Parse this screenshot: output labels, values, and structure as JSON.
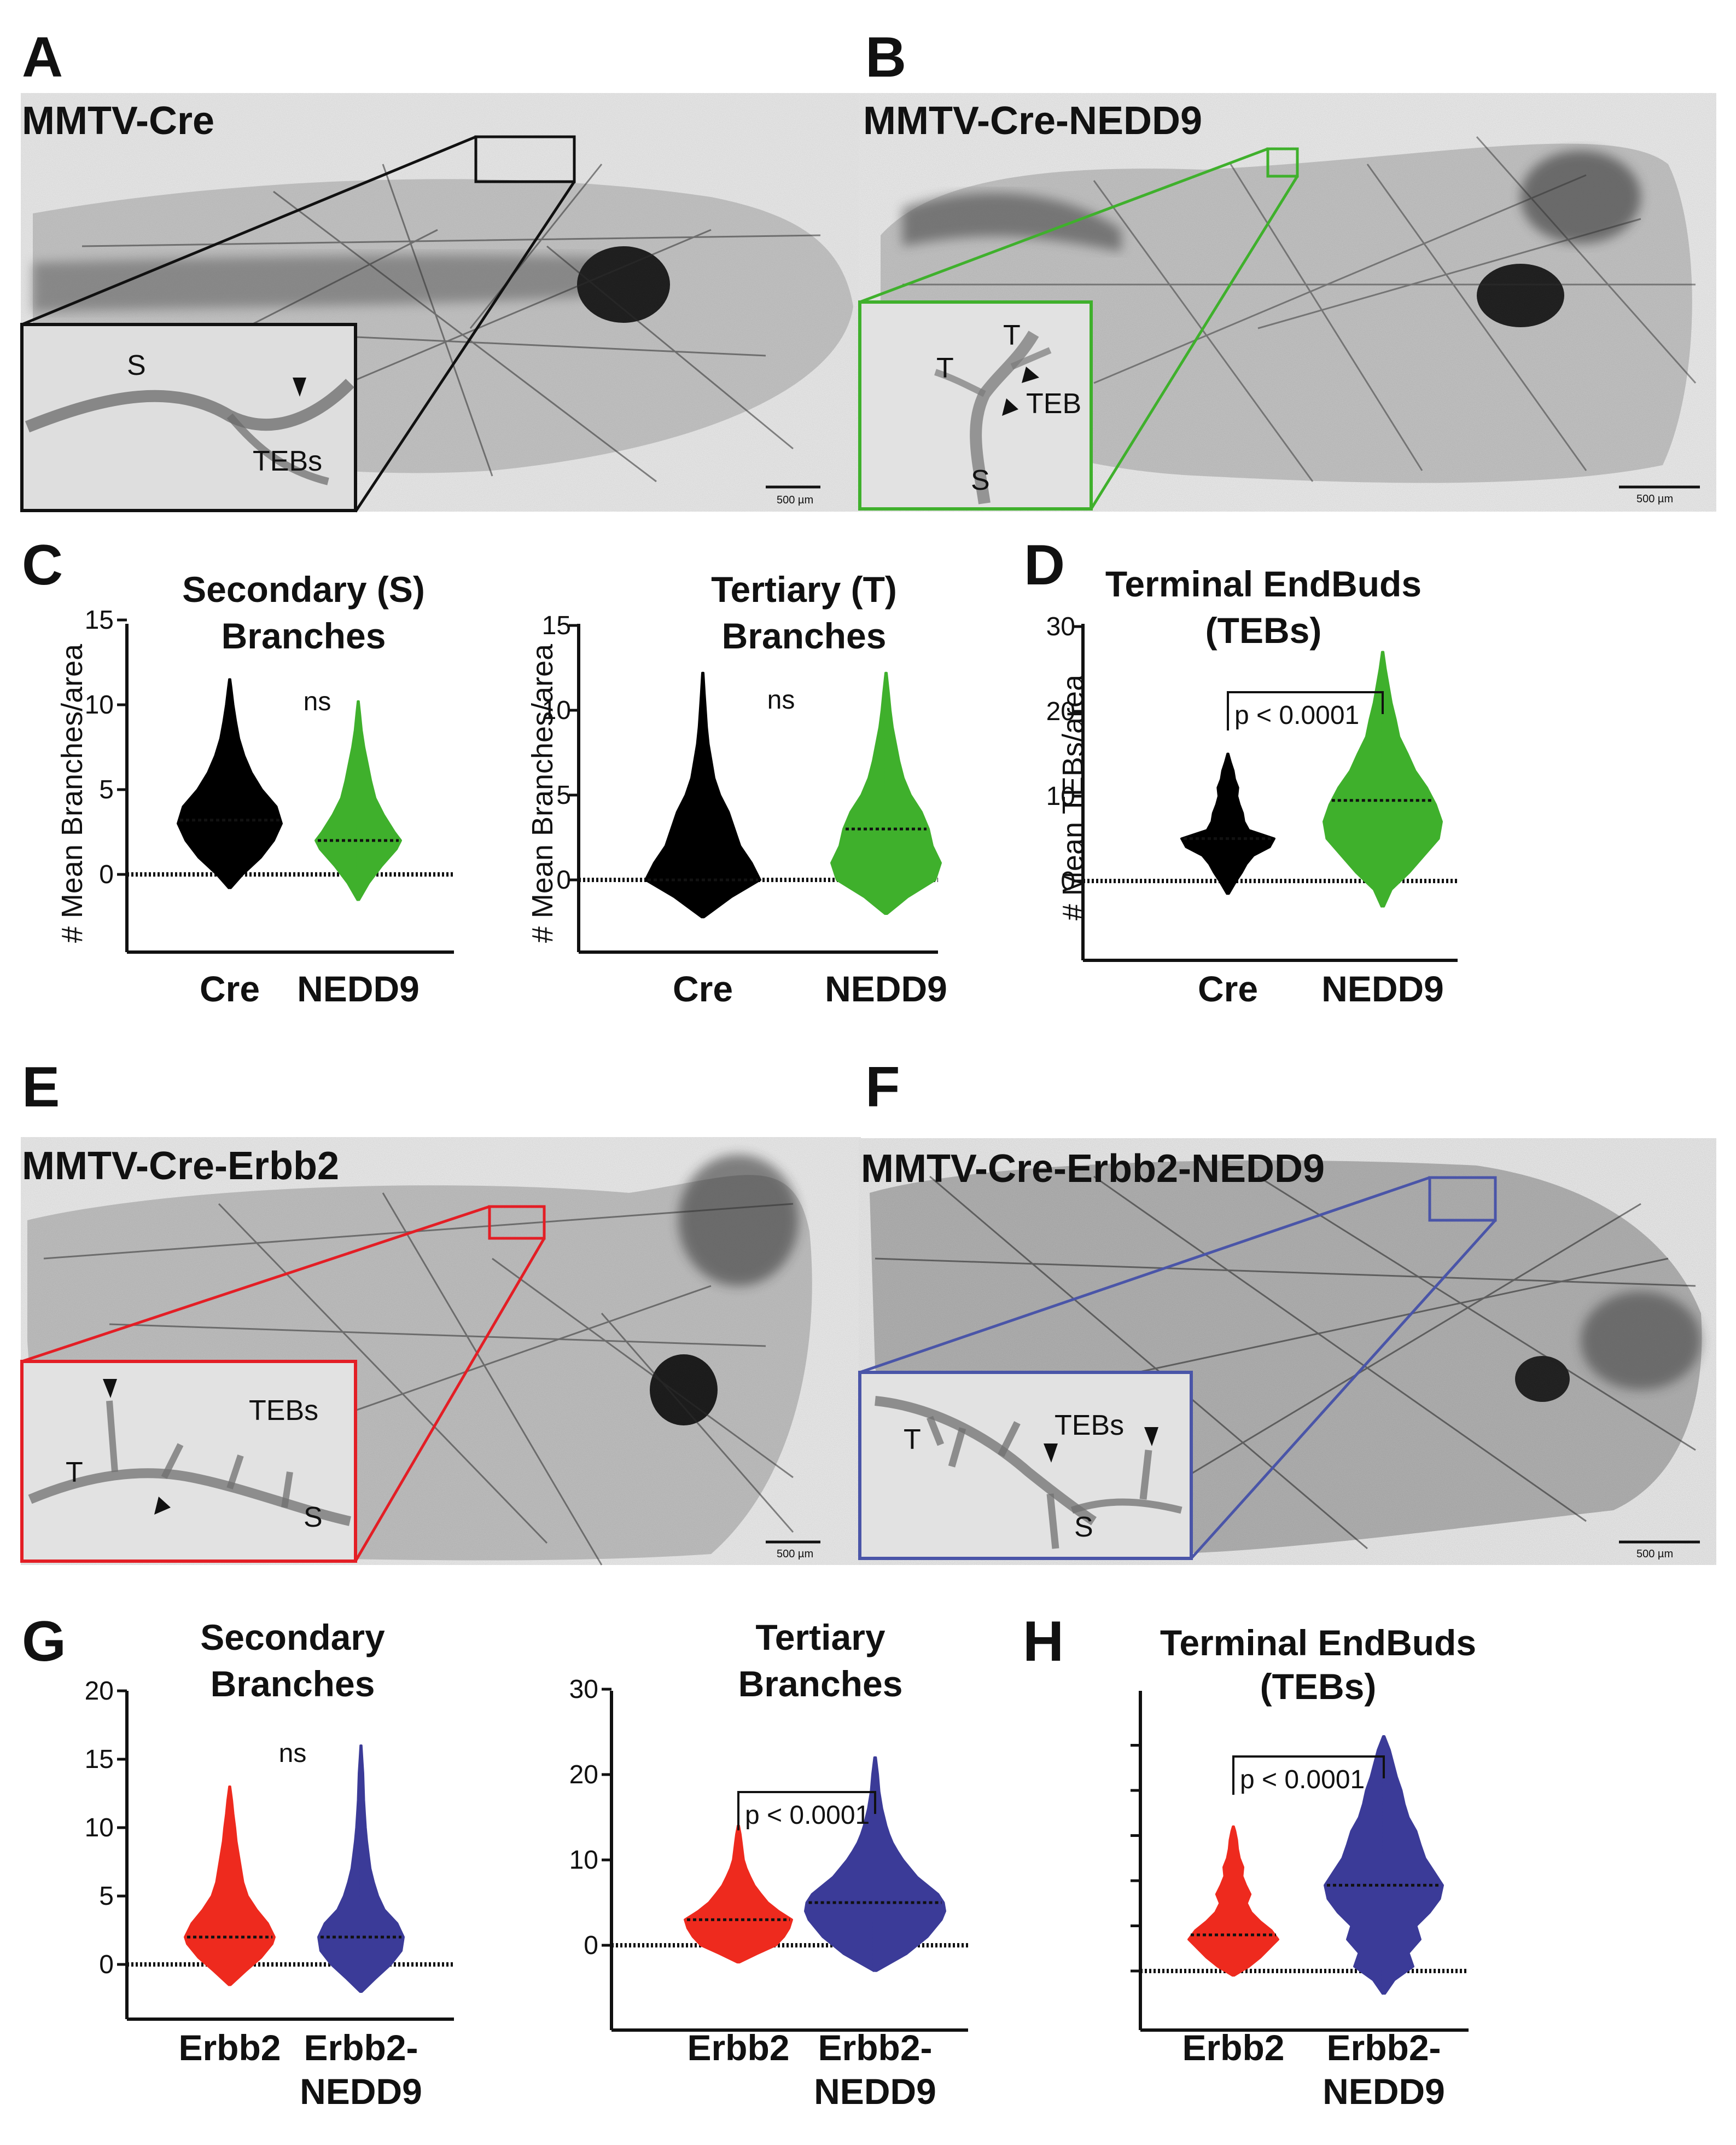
{
  "colors": {
    "cre": "#000000",
    "nedd9": "#3fb02c",
    "erbb2": "#ee2a1e",
    "erbb2_nedd9": "#3b3b98",
    "box_a": "#111111",
    "box_b": "#3fb02c",
    "box_e": "#e31e25",
    "box_f": "#4a55a8"
  },
  "panels": {
    "A": {
      "letter": "A",
      "title": "MMTV-Cre",
      "inset_labels": [
        "S",
        "TEBs"
      ],
      "scale": "500 µm"
    },
    "B": {
      "letter": "B",
      "title": "MMTV-Cre-NEDD9",
      "inset_labels": [
        "T",
        "T",
        "TEB",
        "S"
      ],
      "scale": "500 µm"
    },
    "C": {
      "letter": "C"
    },
    "D": {
      "letter": "D"
    },
    "E": {
      "letter": "E",
      "title": "MMTV-Cre-Erbb2",
      "inset_labels": [
        "TEBs",
        "T",
        "S"
      ],
      "scale": "500 µm"
    },
    "F": {
      "letter": "F",
      "title": "MMTV-Cre-Erbb2-NEDD9",
      "inset_labels": [
        "T",
        "TEBs",
        "S"
      ],
      "scale": "500 µm"
    },
    "G": {
      "letter": "G"
    },
    "H": {
      "letter": "H"
    }
  },
  "chart_data": [
    {
      "id": "C1",
      "type": "violin",
      "title": [
        "Secondary (S)",
        "Branches"
      ],
      "ylabel": "# Mean Branches/area",
      "ylim": [
        -5,
        15
      ],
      "yticks": [
        0,
        5,
        10,
        15
      ],
      "categories": [
        "Cre",
        "NEDD9"
      ],
      "series": [
        {
          "name": "Cre",
          "median": 3.2,
          "min": -0.8,
          "max": 11.5,
          "profile": [
            [
              -0.8,
              0.02
            ],
            [
              0,
              0.25
            ],
            [
              1,
              0.6
            ],
            [
              2,
              0.85
            ],
            [
              3,
              1.0
            ],
            [
              4,
              0.9
            ],
            [
              5,
              0.62
            ],
            [
              6,
              0.42
            ],
            [
              7,
              0.28
            ],
            [
              8,
              0.18
            ],
            [
              9,
              0.12
            ],
            [
              10,
              0.07
            ],
            [
              11,
              0.03
            ],
            [
              11.5,
              0.01
            ]
          ]
        },
        {
          "name": "NEDD9",
          "median": 2.0,
          "min": -1.5,
          "max": 10.2,
          "profile": [
            [
              -1.5,
              0.02
            ],
            [
              -0.5,
              0.25
            ],
            [
              0.5,
              0.55
            ],
            [
              1.5,
              0.9
            ],
            [
              2,
              1.0
            ],
            [
              2.5,
              0.85
            ],
            [
              3.5,
              0.6
            ],
            [
              4.5,
              0.4
            ],
            [
              5.5,
              0.3
            ],
            [
              6.5,
              0.22
            ],
            [
              7.5,
              0.14
            ],
            [
              8.5,
              0.08
            ],
            [
              9.5,
              0.04
            ],
            [
              10.2,
              0.01
            ]
          ]
        }
      ],
      "annotation": {
        "text": "ns"
      }
    },
    {
      "id": "C2",
      "type": "violin",
      "title": [
        "Tertiary (T)",
        "Branches"
      ],
      "ylabel": "# Mean Branches/area",
      "ylim": [
        -5,
        15
      ],
      "yticks": [
        0,
        5,
        10,
        15
      ],
      "categories": [
        "Cre",
        "NEDD9"
      ],
      "series": [
        {
          "name": "Cre",
          "median": 0.0,
          "min": -2.2,
          "max": 12.2,
          "profile": [
            [
              -2.2,
              0.02
            ],
            [
              -1,
              0.5
            ],
            [
              0,
              1.0
            ],
            [
              1,
              0.85
            ],
            [
              2,
              0.65
            ],
            [
              3,
              0.55
            ],
            [
              4,
              0.45
            ],
            [
              5,
              0.3
            ],
            [
              6,
              0.2
            ],
            [
              7,
              0.15
            ],
            [
              8,
              0.1
            ],
            [
              9,
              0.07
            ],
            [
              10,
              0.05
            ],
            [
              11,
              0.03
            ],
            [
              12.2,
              0.01
            ]
          ]
        },
        {
          "name": "NEDD9",
          "median": 3.0,
          "min": -2.0,
          "max": 12.2,
          "profile": [
            [
              -2,
              0.02
            ],
            [
              -1,
              0.4
            ],
            [
              0,
              0.9
            ],
            [
              1,
              1.0
            ],
            [
              2,
              0.85
            ],
            [
              3,
              0.78
            ],
            [
              4,
              0.65
            ],
            [
              5,
              0.45
            ],
            [
              6,
              0.32
            ],
            [
              7,
              0.24
            ],
            [
              8,
              0.18
            ],
            [
              9,
              0.12
            ],
            [
              10,
              0.08
            ],
            [
              11,
              0.05
            ],
            [
              12.2,
              0.01
            ]
          ]
        }
      ],
      "annotation": {
        "text": "ns"
      }
    },
    {
      "id": "D",
      "type": "violin",
      "title": [
        "Terminal EndBuds",
        "(TEBs)"
      ],
      "ylabel": "# Mean TEBs/area",
      "ylim": [
        -10,
        30
      ],
      "yticks": [
        0,
        10,
        20,
        30
      ],
      "categories": [
        "Cre",
        "NEDD9"
      ],
      "series": [
        {
          "name": "Cre",
          "median": 5.0,
          "min": -1.5,
          "max": 15.0,
          "profile": [
            [
              -1.5,
              0.02
            ],
            [
              0,
              0.18
            ],
            [
              1,
              0.3
            ],
            [
              2,
              0.4
            ],
            [
              3,
              0.55
            ],
            [
              4,
              0.9
            ],
            [
              5,
              1.0
            ],
            [
              6,
              0.45
            ],
            [
              7,
              0.35
            ],
            [
              8,
              0.32
            ],
            [
              9,
              0.25
            ],
            [
              10,
              0.2
            ],
            [
              11,
              0.22
            ],
            [
              12,
              0.15
            ],
            [
              13,
              0.12
            ],
            [
              14,
              0.06
            ],
            [
              15,
              0.01
            ]
          ]
        },
        {
          "name": "NEDD9",
          "median": 9.5,
          "min": -3.0,
          "max": 27.0,
          "profile": [
            [
              -3,
              0.02
            ],
            [
              -1,
              0.15
            ],
            [
              1,
              0.45
            ],
            [
              3,
              0.7
            ],
            [
              5,
              0.95
            ],
            [
              7,
              1.0
            ],
            [
              9,
              0.9
            ],
            [
              11,
              0.75
            ],
            [
              13,
              0.55
            ],
            [
              15,
              0.42
            ],
            [
              17,
              0.28
            ],
            [
              19,
              0.22
            ],
            [
              21,
              0.15
            ],
            [
              23,
              0.1
            ],
            [
              25,
              0.05
            ],
            [
              27,
              0.01
            ]
          ]
        }
      ],
      "annotation": {
        "text": "p < 0.0001",
        "bracket": true
      }
    },
    {
      "id": "G1",
      "type": "violin",
      "title": [
        "Secondary",
        "Branches"
      ],
      "ylabel": "",
      "ylim": [
        -5,
        20
      ],
      "yticks": [
        0,
        5,
        10,
        15,
        20
      ],
      "categories": [
        "Erbb2",
        "Erbb2-\nNEDD9"
      ],
      "series": [
        {
          "name": "Erbb2",
          "median": 2.0,
          "min": -1.5,
          "max": 13.0,
          "profile": [
            [
              -1.5,
              0.02
            ],
            [
              -0.5,
              0.35
            ],
            [
              0.5,
              0.7
            ],
            [
              1.5,
              0.95
            ],
            [
              2,
              1.0
            ],
            [
              3,
              0.85
            ],
            [
              4,
              0.6
            ],
            [
              5,
              0.4
            ],
            [
              6,
              0.3
            ],
            [
              7,
              0.25
            ],
            [
              8,
              0.2
            ],
            [
              9,
              0.15
            ],
            [
              10,
              0.12
            ],
            [
              11,
              0.08
            ],
            [
              12,
              0.05
            ],
            [
              13,
              0.01
            ]
          ]
        },
        {
          "name": "Erbb2-NEDD9",
          "median": 2.0,
          "min": -2.0,
          "max": 16.0,
          "profile": [
            [
              -2,
              0.02
            ],
            [
              -1,
              0.35
            ],
            [
              0,
              0.7
            ],
            [
              1,
              0.95
            ],
            [
              2,
              1.0
            ],
            [
              3,
              0.85
            ],
            [
              4,
              0.55
            ],
            [
              5,
              0.4
            ],
            [
              6,
              0.3
            ],
            [
              7,
              0.22
            ],
            [
              8,
              0.18
            ],
            [
              9,
              0.14
            ],
            [
              10,
              0.11
            ],
            [
              11,
              0.09
            ],
            [
              12,
              0.07
            ],
            [
              13,
              0.06
            ],
            [
              14,
              0.05
            ],
            [
              15,
              0.03
            ],
            [
              16,
              0.01
            ]
          ]
        }
      ],
      "annotation": {
        "text": "ns"
      }
    },
    {
      "id": "G2",
      "type": "violin",
      "title": [
        "Tertiary",
        "Branches"
      ],
      "ylabel": "",
      "ylim": [
        -10,
        30
      ],
      "yticks": [
        0,
        10,
        20,
        30
      ],
      "categories": [
        "Erbb2",
        "Erbb2-\nNEDD9"
      ],
      "series": [
        {
          "name": "Erbb2",
          "median": 3.0,
          "min": -2.0,
          "max": 14.0,
          "profile": [
            [
              -2,
              0.02
            ],
            [
              -1,
              0.35
            ],
            [
              0,
              0.7
            ],
            [
              1,
              0.85
            ],
            [
              2,
              0.95
            ],
            [
              3,
              1.0
            ],
            [
              4,
              0.75
            ],
            [
              5,
              0.55
            ],
            [
              6,
              0.42
            ],
            [
              7,
              0.3
            ],
            [
              8,
              0.22
            ],
            [
              9,
              0.15
            ],
            [
              10,
              0.1
            ],
            [
              11,
              0.08
            ],
            [
              12,
              0.06
            ],
            [
              13,
              0.04
            ],
            [
              14,
              0.01
            ]
          ]
        },
        {
          "name": "Erbb2-NEDD9",
          "median": 5.0,
          "min": -3.0,
          "max": 22.0,
          "profile": [
            [
              -3,
              0.02
            ],
            [
              -1,
              0.45
            ],
            [
              1,
              0.75
            ],
            [
              2,
              0.85
            ],
            [
              3,
              0.95
            ],
            [
              4,
              1.0
            ],
            [
              5,
              0.98
            ],
            [
              6,
              0.9
            ],
            [
              7,
              0.75
            ],
            [
              8,
              0.6
            ],
            [
              9,
              0.5
            ],
            [
              10,
              0.4
            ],
            [
              11,
              0.32
            ],
            [
              12,
              0.25
            ],
            [
              13,
              0.2
            ],
            [
              14,
              0.16
            ],
            [
              16,
              0.1
            ],
            [
              18,
              0.06
            ],
            [
              20,
              0.04
            ],
            [
              22,
              0.01
            ]
          ]
        }
      ],
      "annotation": {
        "text": "p < 0.0001",
        "bracket": true
      }
    },
    {
      "id": "H",
      "type": "violin",
      "title": [
        "Terminal EndBuds",
        "(TEBs)"
      ],
      "ylabel": "",
      "ylim": [
        -3,
        28
      ],
      "yticks": [],
      "categories": [
        "Erbb2",
        "Erbb2-\nNEDD9"
      ],
      "series": [
        {
          "name": "Erbb2",
          "median": 4.0,
          "min": -0.5,
          "max": 16.0,
          "profile": [
            [
              -0.5,
              0.02
            ],
            [
              0.5,
              0.35
            ],
            [
              1.5,
              0.6
            ],
            [
              2.5,
              0.8
            ],
            [
              3.5,
              1.0
            ],
            [
              4.5,
              0.85
            ],
            [
              5.5,
              0.6
            ],
            [
              6.5,
              0.4
            ],
            [
              7.5,
              0.3
            ],
            [
              8.5,
              0.38
            ],
            [
              9.5,
              0.28
            ],
            [
              10.5,
              0.2
            ],
            [
              11.5,
              0.22
            ],
            [
              12.5,
              0.14
            ],
            [
              13.5,
              0.1
            ],
            [
              14.5,
              0.08
            ],
            [
              15.5,
              0.04
            ],
            [
              16,
              0.01
            ]
          ]
        },
        {
          "name": "Erbb2-NEDD9",
          "median": 9.5,
          "min": -2.5,
          "max": 26.0,
          "profile": [
            [
              -2.5,
              0.02
            ],
            [
              -1,
              0.18
            ],
            [
              0.5,
              0.5
            ],
            [
              2,
              0.42
            ],
            [
              3.5,
              0.62
            ],
            [
              5,
              0.55
            ],
            [
              6.5,
              0.78
            ],
            [
              8,
              0.95
            ],
            [
              9.5,
              1.0
            ],
            [
              11,
              0.85
            ],
            [
              12.5,
              0.7
            ],
            [
              14,
              0.62
            ],
            [
              15.5,
              0.55
            ],
            [
              17,
              0.42
            ],
            [
              18.5,
              0.35
            ],
            [
              20,
              0.3
            ],
            [
              21.5,
              0.22
            ],
            [
              23,
              0.16
            ],
            [
              24.5,
              0.1
            ],
            [
              26,
              0.01
            ]
          ]
        }
      ],
      "annotation": {
        "text": "p < 0.0001",
        "bracket": true
      }
    }
  ]
}
